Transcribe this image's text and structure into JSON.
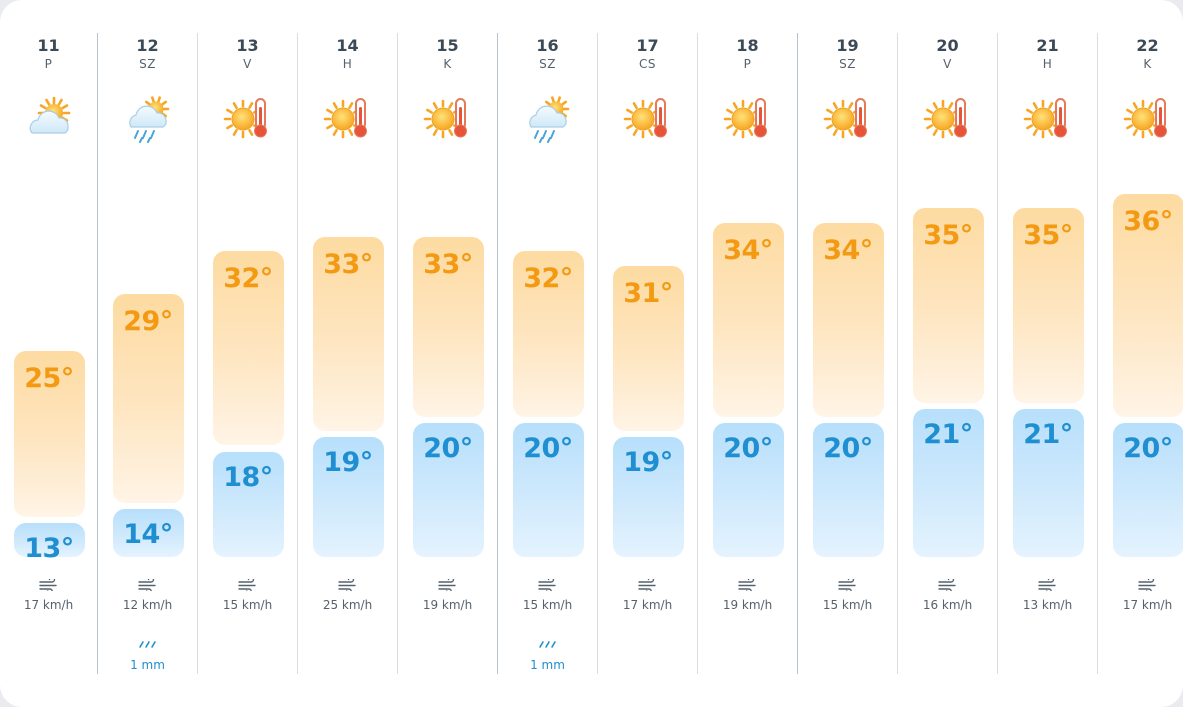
{
  "colors": {
    "high_text": "#f39a12",
    "low_text": "#1f8fd1",
    "high_bar": "#fddba1",
    "low_bar": "#b7dffb"
  },
  "days": [
    {
      "date": "11",
      "dow": "P",
      "icon": "sun-cloud-icon",
      "high": "25°",
      "low": "13°",
      "wind": "17 km/h",
      "rain": null
    },
    {
      "date": "12",
      "dow": "SZ",
      "icon": "rain-cloud-icon",
      "high": "29°",
      "low": "14°",
      "wind": "12 km/h",
      "rain": "1 mm"
    },
    {
      "date": "13",
      "dow": "V",
      "icon": "sun-hot-icon",
      "high": "32°",
      "low": "18°",
      "wind": "15 km/h",
      "rain": null
    },
    {
      "date": "14",
      "dow": "H",
      "icon": "sun-hot-icon",
      "high": "33°",
      "low": "19°",
      "wind": "25 km/h",
      "rain": null
    },
    {
      "date": "15",
      "dow": "K",
      "icon": "sun-hot-icon",
      "high": "33°",
      "low": "20°",
      "wind": "19 km/h",
      "rain": null
    },
    {
      "date": "16",
      "dow": "SZ",
      "icon": "rain-cloud-icon",
      "high": "32°",
      "low": "20°",
      "wind": "15 km/h",
      "rain": "1 mm"
    },
    {
      "date": "17",
      "dow": "CS",
      "icon": "sun-hot-icon",
      "high": "31°",
      "low": "19°",
      "wind": "17 km/h",
      "rain": null
    },
    {
      "date": "18",
      "dow": "P",
      "icon": "sun-hot-icon",
      "high": "34°",
      "low": "20°",
      "wind": "19 km/h",
      "rain": null
    },
    {
      "date": "19",
      "dow": "SZ",
      "icon": "sun-hot-icon",
      "high": "34°",
      "low": "20°",
      "wind": "15 km/h",
      "rain": null
    },
    {
      "date": "20",
      "dow": "V",
      "icon": "sun-hot-icon",
      "high": "35°",
      "low": "21°",
      "wind": "16 km/h",
      "rain": null
    },
    {
      "date": "21",
      "dow": "H",
      "icon": "sun-hot-icon",
      "high": "35°",
      "low": "21°",
      "wind": "13 km/h",
      "rain": null
    },
    {
      "date": "22",
      "dow": "K",
      "icon": "sun-hot-icon",
      "high": "36°",
      "low": "20°",
      "wind": "17 km/h",
      "rain": null
    }
  ]
}
